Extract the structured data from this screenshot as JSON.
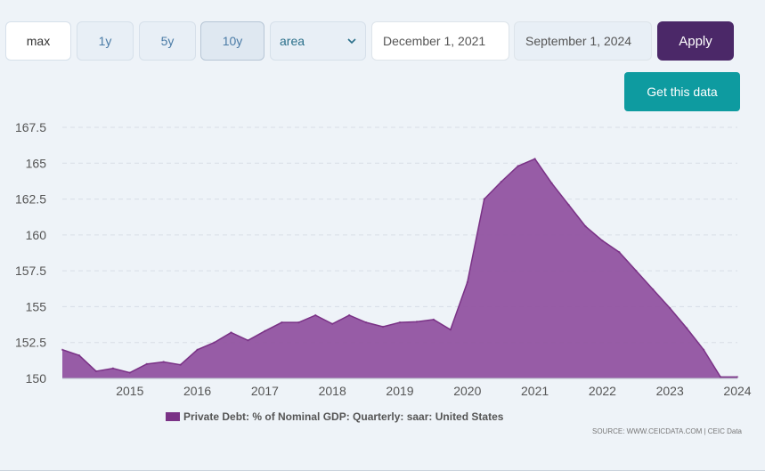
{
  "range_buttons": [
    {
      "label": "max"
    },
    {
      "label": "1y"
    },
    {
      "label": "5y"
    },
    {
      "label": "10y"
    }
  ],
  "chart_type_select": {
    "value": "area"
  },
  "start_date": "December 1, 2021",
  "end_date": "September 1, 2024",
  "apply_label": "Apply",
  "get_data_label": "Get this data",
  "source_text": "SOURCE: WWW.CEICDATA.COM | CEIC Data",
  "colors": {
    "series": "#7a3286",
    "series_fill": "#8f4f9e",
    "apply": "#4b2868",
    "get_data": "#0e9ba0"
  },
  "chart_data": {
    "type": "area",
    "title": "",
    "xlabel": "",
    "ylabel": "",
    "ylim": [
      150,
      167.5
    ],
    "yticks": [
      "150",
      "152.5",
      "155",
      "157.5",
      "160",
      "162.5",
      "165",
      "167.5"
    ],
    "xticks": [
      "2015",
      "2016",
      "2017",
      "2018",
      "2019",
      "2020",
      "2021",
      "2022",
      "2023",
      "2024"
    ],
    "xlim": [
      2014.0,
      2024.0
    ],
    "grid": true,
    "legend_position": "bottom",
    "series": [
      {
        "name": "Private Debt: % of Nominal GDP: Quarterly: saar: United States",
        "x": [
          2014.0,
          2014.25,
          2014.5,
          2014.75,
          2015.0,
          2015.25,
          2015.5,
          2015.75,
          2016.0,
          2016.25,
          2016.5,
          2016.75,
          2017.0,
          2017.25,
          2017.5,
          2017.75,
          2018.0,
          2018.25,
          2018.5,
          2018.75,
          2019.0,
          2019.25,
          2019.5,
          2019.75,
          2020.0,
          2020.25,
          2020.5,
          2020.75,
          2021.0,
          2021.25,
          2021.5,
          2021.75,
          2022.0,
          2022.25,
          2022.5,
          2022.75,
          2023.0,
          2023.25,
          2023.5,
          2023.75,
          2024.0
        ],
        "values": [
          152.0,
          151.6,
          150.5,
          150.7,
          150.4,
          151.0,
          151.15,
          150.95,
          152.0,
          152.5,
          153.2,
          152.65,
          153.3,
          153.9,
          153.9,
          154.4,
          153.8,
          154.4,
          153.9,
          153.6,
          153.9,
          153.95,
          154.1,
          153.4,
          156.7,
          162.5,
          163.7,
          164.8,
          165.3,
          163.6,
          162.1,
          160.6,
          159.6,
          158.8,
          157.5,
          156.2,
          154.9,
          153.5,
          152.0,
          150.1,
          150.1
        ]
      }
    ]
  }
}
